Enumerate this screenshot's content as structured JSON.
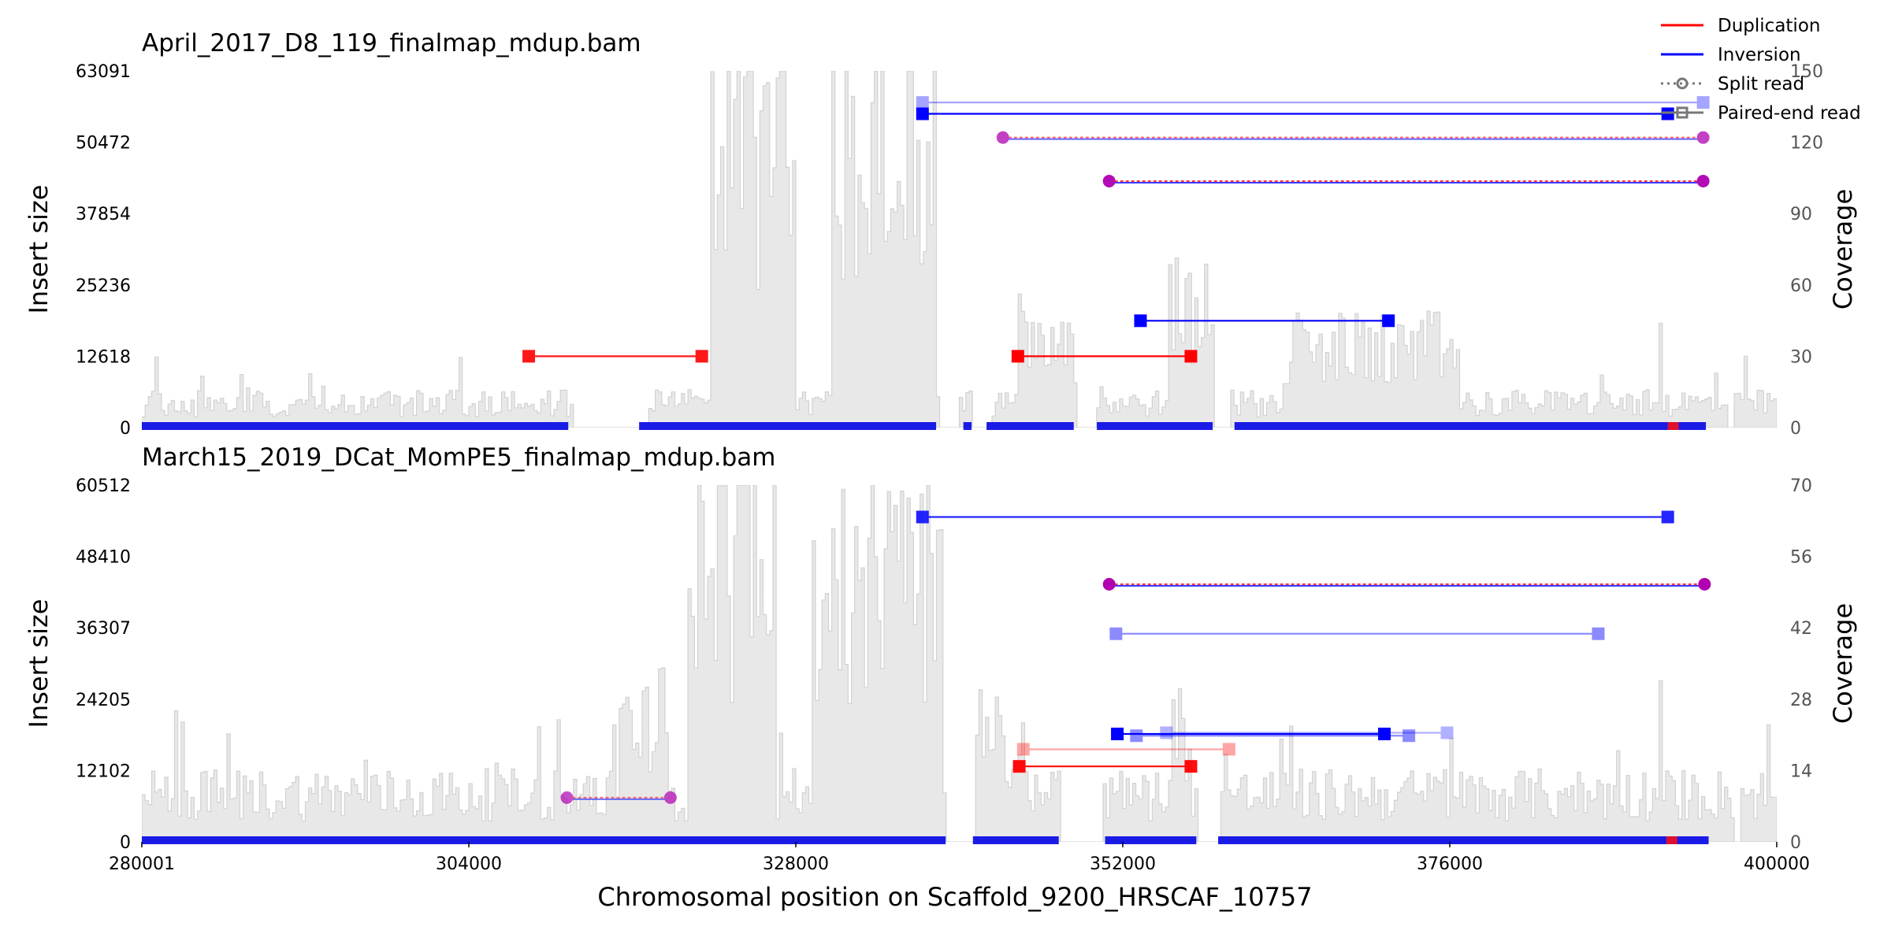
{
  "chart_data": {
    "type": "line",
    "xlabel": "Chromosomal position on Scaffold_9200_HRSCAF_10757",
    "xlim": [
      280001,
      400000
    ],
    "xticks": [
      "280001",
      "304000",
      "328000",
      "352000",
      "376000",
      "400000"
    ],
    "colors": {
      "duplication": "#ff0000",
      "inversion": "#0000ff",
      "mixed": "#b000b0",
      "coverage": "#e8e8e8"
    },
    "legend": {
      "placement": "top-right",
      "entries": [
        "Duplication",
        "Inversion",
        "Split read",
        "Paired-end read"
      ]
    },
    "panels": [
      {
        "title": "April_2017_D8_119_finalmap_mdup.bam",
        "ylabel_left": "Insert size",
        "ylabel_right": "Coverage",
        "ylim": [
          0,
          63091
        ],
        "yticks": [
          "0",
          "12618",
          "25236",
          "37854",
          "50472",
          "63091"
        ],
        "coverage_ylim": [
          0,
          150
        ],
        "coverage_ticks": [
          "0",
          "30",
          "60",
          "90",
          "120",
          "150"
        ],
        "coverage_gaps": [
          [
            311500,
            317000
          ],
          [
            338500,
            339800
          ],
          [
            340800,
            342200
          ],
          [
            348500,
            350000
          ],
          [
            358700,
            359800
          ],
          [
            396400,
            396800
          ]
        ],
        "coverage_peaks": [
          {
            "start": 321600,
            "end": 327800,
            "height": 160
          },
          {
            "start": 330500,
            "end": 338200,
            "height": 165
          },
          {
            "start": 344200,
            "end": 348300,
            "height": 55
          },
          {
            "start": 355200,
            "end": 358500,
            "height": 65
          },
          {
            "start": 363600,
            "end": 376500,
            "height": 45
          },
          {
            "start": 391200,
            "end": 391600,
            "height": 65
          }
        ],
        "events": [
          {
            "type": "dup",
            "read": "paired",
            "x1": 308400,
            "x2": 321100,
            "y": 12618,
            "alpha": 0.9
          },
          {
            "type": "dup",
            "read": "paired",
            "x1": 344300,
            "x2": 357000,
            "y": 12618,
            "alpha": 1.0
          },
          {
            "type": "inv",
            "read": "paired",
            "x1": 353300,
            "x2": 371500,
            "y": 18900,
            "alpha": 1.0
          },
          {
            "type": "inv",
            "read": "paired",
            "x1": 337300,
            "x2": 392000,
            "y": 55500,
            "alpha": 1.0
          },
          {
            "type": "inv",
            "read": "paired",
            "x1": 337300,
            "x2": 394600,
            "y": 57500,
            "alpha": 0.35
          },
          {
            "type": "mix",
            "read": "split",
            "x1": 343200,
            "x2": 394600,
            "y": 51300,
            "alpha": 0.75
          },
          {
            "type": "mix",
            "read": "split",
            "x1": 351000,
            "x2": 394600,
            "y": 43600,
            "alpha": 0.95
          }
        ],
        "baseline_segments": [
          [
            280001,
            311300
          ],
          [
            316500,
            338300
          ],
          [
            340300,
            340900
          ],
          [
            342000,
            348400
          ],
          [
            350100,
            358600
          ],
          [
            360200,
            394800
          ]
        ],
        "red_marker": 392400
      },
      {
        "title": "March15_2019_DCat_MomPE5_finalmap_mdup.bam",
        "ylabel_left": "Insert size",
        "ylabel_right": "Coverage",
        "ylim": [
          0,
          60512
        ],
        "yticks": [
          "0",
          "12102",
          "24205",
          "36307",
          "48410",
          "60512"
        ],
        "coverage_ylim": [
          0,
          70
        ],
        "coverage_ticks": [
          "0",
          "14",
          "28",
          "42",
          "56",
          "70"
        ],
        "coverage_gaps": [
          [
            338900,
            341100
          ],
          [
            347400,
            350500
          ],
          [
            357300,
            359000
          ],
          [
            396800,
            397200
          ]
        ],
        "coverage_peaks": [
          {
            "start": 315000,
            "end": 318500,
            "height": 32
          },
          {
            "start": 320000,
            "end": 326500,
            "height": 76
          },
          {
            "start": 329000,
            "end": 338800,
            "height": 68
          },
          {
            "start": 341200,
            "end": 344700,
            "height": 28
          },
          {
            "start": 345600,
            "end": 347300,
            "height": 14
          },
          {
            "start": 355500,
            "end": 357000,
            "height": 30
          },
          {
            "start": 391200,
            "end": 391600,
            "height": 45
          }
        ],
        "events": [
          {
            "type": "mix",
            "read": "split",
            "x1": 311200,
            "x2": 318800,
            "y": 7500,
            "alpha": 0.7
          },
          {
            "type": "dup",
            "read": "paired",
            "x1": 344400,
            "x2": 357000,
            "y": 12800,
            "alpha": 0.95
          },
          {
            "type": "dup",
            "read": "paired",
            "x1": 344700,
            "x2": 359800,
            "y": 15700,
            "alpha": 0.35
          },
          {
            "type": "inv",
            "read": "paired",
            "x1": 351600,
            "x2": 371200,
            "y": 18300,
            "alpha": 1.0
          },
          {
            "type": "inv",
            "read": "paired",
            "x1": 353000,
            "x2": 373000,
            "y": 18000,
            "alpha": 0.45
          },
          {
            "type": "inv",
            "read": "paired",
            "x1": 355200,
            "x2": 375800,
            "y": 18500,
            "alpha": 0.3
          },
          {
            "type": "inv",
            "read": "paired",
            "x1": 351500,
            "x2": 386900,
            "y": 35300,
            "alpha": 0.45
          },
          {
            "type": "mix",
            "read": "split",
            "x1": 351000,
            "x2": 394700,
            "y": 43700,
            "alpha": 1.0
          },
          {
            "type": "inv",
            "read": "paired",
            "x1": 337300,
            "x2": 392000,
            "y": 55100,
            "alpha": 0.85
          }
        ],
        "baseline_segments": [
          [
            280001,
            339000
          ],
          [
            341000,
            347300
          ],
          [
            350700,
            357400
          ],
          [
            359000,
            395000
          ]
        ],
        "red_marker": 392300
      }
    ]
  }
}
